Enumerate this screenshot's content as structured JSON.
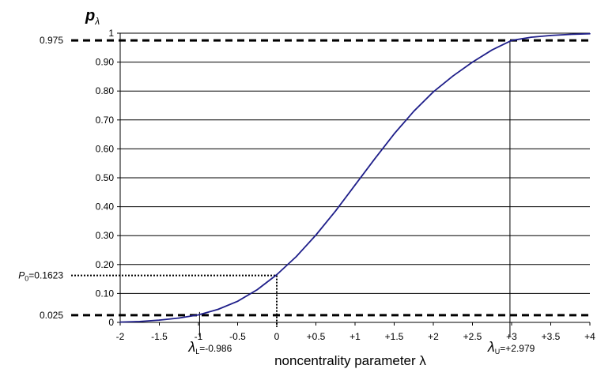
{
  "chart_data": {
    "type": "line",
    "title": "",
    "ylabel": "p",
    "ylabel_subscript": "λ",
    "xlabel": "noncentrality parameter λ",
    "xlim": [
      -2,
      4
    ],
    "ylim": [
      0,
      1
    ],
    "grid": {
      "horizontal": true,
      "vertical": false
    },
    "xticks": [
      {
        "value": -2,
        "label": "-2"
      },
      {
        "value": -1.5,
        "label": "-1.5"
      },
      {
        "value": -1,
        "label": "-1"
      },
      {
        "value": -0.5,
        "label": "-0.5"
      },
      {
        "value": 0,
        "label": "0"
      },
      {
        "value": 0.5,
        "label": "+0.5"
      },
      {
        "value": 1,
        "label": "+1"
      },
      {
        "value": 1.5,
        "label": "+1.5"
      },
      {
        "value": 2,
        "label": "+2"
      },
      {
        "value": 2.5,
        "label": "+2.5"
      },
      {
        "value": 3,
        "label": "+3"
      },
      {
        "value": 3.5,
        "label": "+3.5"
      },
      {
        "value": 4,
        "label": "+4"
      }
    ],
    "yticks": [
      {
        "value": 0,
        "label": "0"
      },
      {
        "value": 0.1,
        "label": "0.10"
      },
      {
        "value": 0.2,
        "label": "0.20"
      },
      {
        "value": 0.3,
        "label": "0.30"
      },
      {
        "value": 0.4,
        "label": "0.40"
      },
      {
        "value": 0.5,
        "label": "0.50"
      },
      {
        "value": 0.6,
        "label": "0.60"
      },
      {
        "value": 0.7,
        "label": "0.70"
      },
      {
        "value": 0.8,
        "label": "0.80"
      },
      {
        "value": 0.9,
        "label": "0.90"
      },
      {
        "value": 1,
        "label": "1"
      }
    ],
    "series": [
      {
        "color": "#1f1f8a",
        "x": [
          -2.0,
          -1.75,
          -1.5,
          -1.25,
          -1.0,
          -0.75,
          -0.5,
          -0.25,
          0.0,
          0.25,
          0.5,
          0.75,
          1.0,
          1.25,
          1.5,
          1.75,
          2.0,
          2.25,
          2.5,
          2.75,
          3.0,
          3.25,
          3.5,
          3.75,
          4.0
        ],
        "y": [
          0.001,
          0.003,
          0.008,
          0.015,
          0.026,
          0.045,
          0.073,
          0.113,
          0.165,
          0.228,
          0.302,
          0.385,
          0.475,
          0.565,
          0.652,
          0.73,
          0.797,
          0.852,
          0.9,
          0.942,
          0.975,
          0.986,
          0.992,
          0.996,
          0.998
        ]
      }
    ],
    "reference_lines": {
      "upper_conf": {
        "value": 0.975,
        "label": "0.975"
      },
      "lower_conf": {
        "value": 0.025,
        "label": "0.025"
      },
      "p0": {
        "value": 0.1623,
        "label_prefix": "P",
        "label_sub": "0",
        "label_value": "=0.1623"
      },
      "lambda_L": {
        "value": -0.986,
        "label_sub": "L",
        "label_value": "=-0.986"
      },
      "lambda_U": {
        "value": 2.979,
        "label_sub": "U",
        "label_value": "=+2.979"
      },
      "lambda_symbol": "λ"
    }
  }
}
